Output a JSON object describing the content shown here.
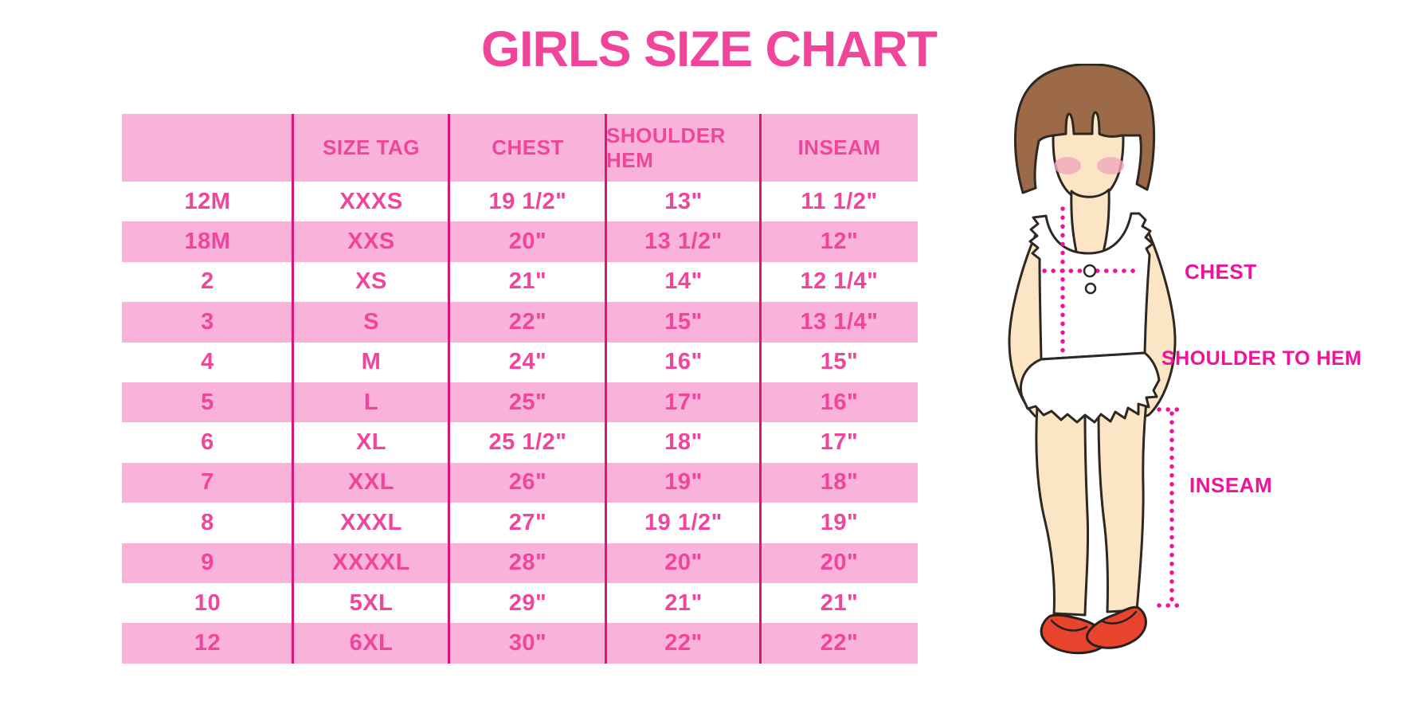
{
  "title": "GIRLS SIZE CHART",
  "table": {
    "columns": [
      "",
      "SIZE TAG",
      "CHEST",
      "SHOULDER HEM",
      "INSEAM"
    ],
    "rows": [
      [
        "12M",
        "XXXS",
        "19 1/2\"",
        "13\"",
        "11 1/2\""
      ],
      [
        "18M",
        "XXS",
        "20\"",
        "13 1/2\"",
        "12\""
      ],
      [
        "2",
        "XS",
        "21\"",
        "14\"",
        "12 1/4\""
      ],
      [
        "3",
        "S",
        "22\"",
        "15\"",
        "13 1/4\""
      ],
      [
        "4",
        "M",
        "24\"",
        "16\"",
        "15\""
      ],
      [
        "5",
        "L",
        "25\"",
        "17\"",
        "16\""
      ],
      [
        "6",
        "XL",
        "25 1/2\"",
        "18\"",
        "17\""
      ],
      [
        "7",
        "XXL",
        "26\"",
        "19\"",
        "18\""
      ],
      [
        "8",
        "XXXL",
        "27\"",
        "19 1/2\"",
        "19\""
      ],
      [
        "9",
        "XXXXL",
        "28\"",
        "20\"",
        "20\""
      ],
      [
        "10",
        "5XL",
        "29\"",
        "21\"",
        "21\""
      ],
      [
        "12",
        "6XL",
        "30\"",
        "22\"",
        "22\""
      ]
    ]
  },
  "figure": {
    "labels": {
      "chest": "CHEST",
      "shoulder_to_hem": "SHOULDER TO HEM",
      "inseam": "INSEAM"
    }
  },
  "colors": {
    "accent_pink": "#F0459B",
    "row_pink": "#F9B3DB",
    "divider_pink": "#D81677",
    "label_magenta": "#F2119A",
    "hair_brown": "#9C6A49",
    "skin": "#FBE5C5",
    "blush": "#F3A8BC",
    "shoe_red": "#E8432C"
  }
}
